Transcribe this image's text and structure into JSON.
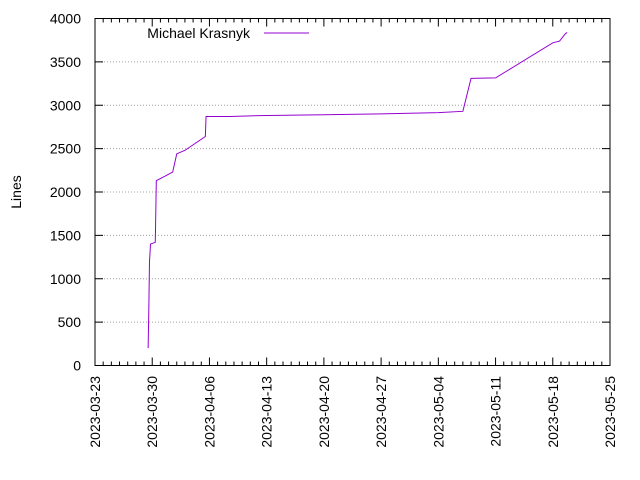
{
  "chart_data": {
    "type": "line",
    "title": "",
    "xlabel": "",
    "ylabel": "Lines",
    "xlim": [
      "2023-03-23",
      "2023-05-25"
    ],
    "ylim": [
      0,
      4000
    ],
    "x_tick_labels": [
      "2023-03-23",
      "2023-03-30",
      "2023-04-06",
      "2023-04-13",
      "2023-04-20",
      "2023-04-27",
      "2023-05-04",
      "2023-05-11",
      "2023-05-18",
      "2023-05-25"
    ],
    "y_tick_labels": [
      "0",
      "500",
      "1000",
      "1500",
      "2000",
      "2500",
      "3000",
      "3500",
      "4000"
    ],
    "grid": "horizontal dotted",
    "legend_position": "top-left",
    "series": [
      {
        "name": "Michael Krasnyk",
        "color": "#9400d3",
        "points": [
          [
            "2023-03-29 12:00",
            200
          ],
          [
            "2023-03-29 14:00",
            650
          ],
          [
            "2023-03-29 16:00",
            1200
          ],
          [
            "2023-03-29 19:00",
            1400
          ],
          [
            "2023-03-30 09:00",
            1420
          ],
          [
            "2023-03-30 12:00",
            2130
          ],
          [
            "2023-03-31 12:00",
            2180
          ],
          [
            "2023-04-01 12:00",
            2230
          ],
          [
            "2023-04-02 00:00",
            2440
          ],
          [
            "2023-04-03 00:00",
            2480
          ],
          [
            "2023-04-05 12:00",
            2640
          ],
          [
            "2023-04-05 14:00",
            2870
          ],
          [
            "2023-04-08 12:00",
            2870
          ],
          [
            "2023-04-12 00:00",
            2880
          ],
          [
            "2023-04-20 00:00",
            2890
          ],
          [
            "2023-04-27 00:00",
            2900
          ],
          [
            "2023-05-04 00:00",
            2915
          ],
          [
            "2023-05-07 00:00",
            2930
          ],
          [
            "2023-05-08 00:00",
            3310
          ],
          [
            "2023-05-11 00:00",
            3315
          ],
          [
            "2023-05-18 00:00",
            3720
          ],
          [
            "2023-05-18 20:00",
            3740
          ],
          [
            "2023-05-19 12:00",
            3820
          ],
          [
            "2023-05-19 18:00",
            3840
          ]
        ]
      }
    ]
  }
}
